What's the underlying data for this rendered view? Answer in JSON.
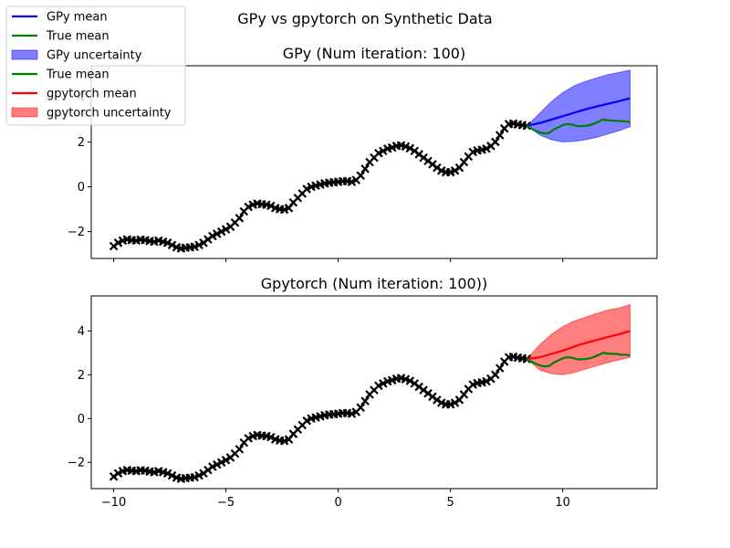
{
  "figure_title": "GPy vs gpytorch on Synthetic Data",
  "colors": {
    "gpy_mean": "#0000ff",
    "gpy_band": "#0000ff",
    "true_mean": "#008000",
    "gpytorch_mean": "#ff0000",
    "gpytorch_band": "#ff0000",
    "observations": "#000000"
  },
  "legend": {
    "placement": "top-left",
    "entries": [
      {
        "label": "GPy mean",
        "kind": "line",
        "color": "#0000ff"
      },
      {
        "label": "True mean",
        "kind": "line",
        "color": "#008000"
      },
      {
        "label": "GPy uncertainty",
        "kind": "patch",
        "color": "#0000ff"
      },
      {
        "label": "True mean",
        "kind": "line",
        "color": "#008000"
      },
      {
        "label": "gpytorch mean",
        "kind": "line",
        "color": "#ff0000"
      },
      {
        "label": "gpytorch uncertainty",
        "kind": "patch",
        "color": "#ff0000"
      }
    ]
  },
  "chart_data": [
    {
      "type": "line",
      "title": "GPy (Num iteration: 100)",
      "xlabel": "",
      "ylabel": "",
      "xlim": [
        -11,
        14.2
      ],
      "ylim": [
        -3.2,
        5.4
      ],
      "xticks": [
        -10,
        -5,
        0,
        5,
        10
      ],
      "xtick_labels_shown": false,
      "yticks": [
        -2,
        0,
        2,
        4
      ],
      "ytick_labels": [
        "−2",
        "0",
        "2",
        "4"
      ],
      "grid": false,
      "observations": {
        "marker": "x",
        "x": [
          -10.0,
          -9.8,
          -9.6,
          -9.4,
          -9.2,
          -9.0,
          -8.8,
          -8.6,
          -8.4,
          -8.2,
          -8.0,
          -7.8,
          -7.6,
          -7.4,
          -7.2,
          -7.0,
          -6.8,
          -6.6,
          -6.4,
          -6.2,
          -6.0,
          -5.8,
          -5.6,
          -5.4,
          -5.2,
          -5.0,
          -4.8,
          -4.6,
          -4.4,
          -4.2,
          -4.0,
          -3.8,
          -3.6,
          -3.4,
          -3.2,
          -3.0,
          -2.8,
          -2.6,
          -2.4,
          -2.2,
          -2.0,
          -1.8,
          -1.6,
          -1.4,
          -1.2,
          -1.0,
          -0.8,
          -0.6,
          -0.4,
          -0.2,
          0.0,
          0.2,
          0.4,
          0.6,
          0.8,
          1.0,
          1.2,
          1.4,
          1.6,
          1.8,
          2.0,
          2.2,
          2.4,
          2.6,
          2.8,
          3.0,
          3.2,
          3.4,
          3.6,
          3.8,
          4.0,
          4.2,
          4.4,
          4.6,
          4.8,
          5.0,
          5.2,
          5.4,
          5.6,
          5.8,
          6.0,
          6.2,
          6.4,
          6.6,
          6.8,
          7.0,
          7.2,
          7.4,
          7.6,
          7.8,
          8.0,
          8.2,
          8.4
        ],
        "y": [
          -2.65,
          -2.5,
          -2.4,
          -2.35,
          -2.38,
          -2.4,
          -2.36,
          -2.38,
          -2.42,
          -2.45,
          -2.4,
          -2.45,
          -2.5,
          -2.6,
          -2.7,
          -2.75,
          -2.72,
          -2.7,
          -2.68,
          -2.6,
          -2.5,
          -2.35,
          -2.2,
          -2.1,
          -2.0,
          -1.9,
          -1.78,
          -1.6,
          -1.4,
          -1.1,
          -0.9,
          -0.8,
          -0.75,
          -0.78,
          -0.8,
          -0.85,
          -0.95,
          -1.0,
          -1.02,
          -0.95,
          -0.7,
          -0.5,
          -0.3,
          -0.1,
          0.0,
          0.05,
          0.1,
          0.15,
          0.18,
          0.2,
          0.22,
          0.25,
          0.25,
          0.22,
          0.3,
          0.5,
          0.8,
          1.1,
          1.3,
          1.5,
          1.6,
          1.7,
          1.75,
          1.82,
          1.85,
          1.8,
          1.72,
          1.6,
          1.45,
          1.3,
          1.15,
          1.0,
          0.85,
          0.72,
          0.65,
          0.65,
          0.72,
          0.85,
          1.1,
          1.35,
          1.55,
          1.62,
          1.65,
          1.7,
          1.82,
          2.0,
          2.3,
          2.6,
          2.8,
          2.82,
          2.78,
          2.75,
          2.72
        ]
      },
      "series": [
        {
          "name": "GPy mean",
          "x": [
            8.4,
            9.0,
            9.5,
            10.0,
            10.5,
            11.0,
            11.5,
            12.0,
            12.5,
            13.0
          ],
          "y": [
            2.72,
            2.85,
            3.0,
            3.15,
            3.3,
            3.45,
            3.58,
            3.7,
            3.82,
            3.95
          ]
        },
        {
          "name": "True mean",
          "x": [
            8.4,
            8.6,
            8.8,
            9.0,
            9.2,
            9.4,
            9.6,
            9.8,
            10.0,
            10.2,
            10.4,
            10.6,
            10.8,
            11.0,
            11.2,
            11.4,
            11.6,
            11.8,
            12.0,
            12.2,
            12.4,
            12.6,
            12.8,
            13.0
          ],
          "y": [
            2.72,
            2.6,
            2.5,
            2.42,
            2.38,
            2.4,
            2.55,
            2.65,
            2.75,
            2.8,
            2.78,
            2.72,
            2.7,
            2.72,
            2.75,
            2.82,
            2.9,
            3.0,
            2.97,
            2.95,
            2.95,
            2.92,
            2.92,
            2.88
          ]
        }
      ],
      "band": {
        "name": "GPy uncertainty",
        "x": [
          8.4,
          9.0,
          9.5,
          10.0,
          10.5,
          11.0,
          11.5,
          12.0,
          12.5,
          13.0
        ],
        "lower": [
          2.72,
          2.3,
          2.1,
          2.0,
          2.02,
          2.1,
          2.2,
          2.35,
          2.5,
          2.68
        ],
        "upper": [
          2.72,
          3.3,
          3.8,
          4.2,
          4.5,
          4.7,
          4.85,
          5.0,
          5.1,
          5.2
        ]
      }
    },
    {
      "type": "line",
      "title": "Gpytorch (Num iteration: 100))",
      "xlabel": "",
      "ylabel": "",
      "xlim": [
        -11,
        14.2
      ],
      "ylim": [
        -3.2,
        5.6
      ],
      "xticks": [
        -10,
        -5,
        0,
        5,
        10
      ],
      "xtick_labels": [
        "−10",
        "−5",
        "0",
        "5",
        "10"
      ],
      "yticks": [
        -2,
        0,
        2,
        4
      ],
      "ytick_labels": [
        "−2",
        "0",
        "2",
        "4"
      ],
      "grid": false,
      "observations": {
        "marker": "x",
        "x": [
          -10.0,
          -9.8,
          -9.6,
          -9.4,
          -9.2,
          -9.0,
          -8.8,
          -8.6,
          -8.4,
          -8.2,
          -8.0,
          -7.8,
          -7.6,
          -7.4,
          -7.2,
          -7.0,
          -6.8,
          -6.6,
          -6.4,
          -6.2,
          -6.0,
          -5.8,
          -5.6,
          -5.4,
          -5.2,
          -5.0,
          -4.8,
          -4.6,
          -4.4,
          -4.2,
          -4.0,
          -3.8,
          -3.6,
          -3.4,
          -3.2,
          -3.0,
          -2.8,
          -2.6,
          -2.4,
          -2.2,
          -2.0,
          -1.8,
          -1.6,
          -1.4,
          -1.2,
          -1.0,
          -0.8,
          -0.6,
          -0.4,
          -0.2,
          0.0,
          0.2,
          0.4,
          0.6,
          0.8,
          1.0,
          1.2,
          1.4,
          1.6,
          1.8,
          2.0,
          2.2,
          2.4,
          2.6,
          2.8,
          3.0,
          3.2,
          3.4,
          3.6,
          3.8,
          4.0,
          4.2,
          4.4,
          4.6,
          4.8,
          5.0,
          5.2,
          5.4,
          5.6,
          5.8,
          6.0,
          6.2,
          6.4,
          6.6,
          6.8,
          7.0,
          7.2,
          7.4,
          7.6,
          7.8,
          8.0,
          8.2,
          8.4
        ],
        "y": [
          -2.65,
          -2.5,
          -2.4,
          -2.35,
          -2.38,
          -2.4,
          -2.36,
          -2.38,
          -2.42,
          -2.45,
          -2.4,
          -2.45,
          -2.5,
          -2.6,
          -2.7,
          -2.75,
          -2.72,
          -2.7,
          -2.68,
          -2.6,
          -2.5,
          -2.35,
          -2.2,
          -2.1,
          -2.0,
          -1.9,
          -1.78,
          -1.6,
          -1.4,
          -1.1,
          -0.9,
          -0.8,
          -0.75,
          -0.78,
          -0.8,
          -0.85,
          -0.95,
          -1.0,
          -1.02,
          -0.95,
          -0.7,
          -0.5,
          -0.3,
          -0.1,
          0.0,
          0.05,
          0.1,
          0.15,
          0.18,
          0.2,
          0.22,
          0.25,
          0.25,
          0.22,
          0.3,
          0.5,
          0.8,
          1.1,
          1.3,
          1.5,
          1.6,
          1.7,
          1.75,
          1.82,
          1.85,
          1.8,
          1.72,
          1.6,
          1.45,
          1.3,
          1.15,
          1.0,
          0.85,
          0.72,
          0.65,
          0.65,
          0.72,
          0.85,
          1.1,
          1.35,
          1.55,
          1.62,
          1.65,
          1.7,
          1.82,
          2.0,
          2.3,
          2.6,
          2.8,
          2.82,
          2.78,
          2.75,
          2.72
        ]
      },
      "series": [
        {
          "name": "gpytorch mean",
          "x": [
            8.4,
            9.0,
            9.5,
            10.0,
            10.5,
            11.0,
            11.5,
            12.0,
            12.5,
            13.0
          ],
          "y": [
            2.72,
            2.8,
            2.95,
            3.1,
            3.28,
            3.45,
            3.58,
            3.72,
            3.85,
            4.0
          ]
        },
        {
          "name": "True mean",
          "x": [
            8.4,
            8.6,
            8.8,
            9.0,
            9.2,
            9.4,
            9.6,
            9.8,
            10.0,
            10.2,
            10.4,
            10.6,
            10.8,
            11.0,
            11.2,
            11.4,
            11.6,
            11.8,
            12.0,
            12.2,
            12.4,
            12.6,
            12.8,
            13.0
          ],
          "y": [
            2.72,
            2.6,
            2.5,
            2.42,
            2.38,
            2.4,
            2.55,
            2.65,
            2.75,
            2.8,
            2.78,
            2.72,
            2.7,
            2.72,
            2.75,
            2.82,
            2.9,
            3.0,
            2.97,
            2.95,
            2.95,
            2.92,
            2.92,
            2.88
          ]
        }
      ],
      "band": {
        "name": "gpytorch uncertainty",
        "x": [
          8.4,
          9.0,
          9.5,
          10.0,
          10.5,
          11.0,
          11.5,
          12.0,
          12.5,
          13.0
        ],
        "lower": [
          2.72,
          2.2,
          2.05,
          2.0,
          2.1,
          2.25,
          2.4,
          2.55,
          2.68,
          2.8
        ],
        "upper": [
          2.72,
          3.4,
          3.85,
          4.2,
          4.45,
          4.62,
          4.8,
          4.95,
          5.05,
          5.2
        ]
      }
    }
  ]
}
